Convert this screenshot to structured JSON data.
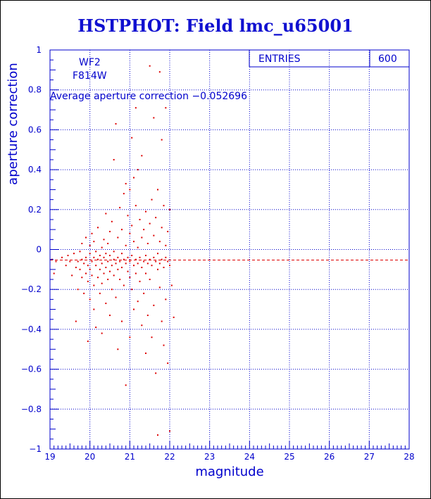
{
  "title": "HSTPHOT: Field lmc_u65001",
  "colors": {
    "axis": "#0000cc",
    "title": "#1010d0",
    "points": "#dd0000",
    "mean_line": "#dd0000"
  },
  "chart_data": {
    "type": "scatter",
    "xlabel": "magnitude",
    "ylabel": "aperture correction",
    "xlim": [
      19,
      28
    ],
    "ylim": [
      -1,
      1
    ],
    "x_ticks": [
      "19",
      "20",
      "21",
      "22",
      "23",
      "24",
      "25",
      "26",
      "27",
      "28"
    ],
    "y_ticks": [
      "1",
      "0.8",
      "0.6",
      "0.4",
      "0.2",
      "0",
      "−0.2",
      "−0.4",
      "−0.6",
      "−0.8",
      "−1"
    ],
    "grid": "dotted",
    "filter_label_1": "WF2",
    "filter_label_2": "F814W",
    "average_label": "Average aperture correction −0.052696",
    "average_value": -0.052696,
    "stats_box": {
      "label": "ENTRIES",
      "value": "600",
      "position": "top-right"
    },
    "points": [
      [
        19.05,
        -0.05
      ],
      [
        19.1,
        -0.12
      ],
      [
        19.15,
        -0.06
      ],
      [
        19.3,
        -0.04
      ],
      [
        19.4,
        -0.08
      ],
      [
        19.45,
        -0.03
      ],
      [
        19.5,
        -0.06
      ],
      [
        19.55,
        -0.13
      ],
      [
        19.6,
        -0.02
      ],
      [
        19.65,
        -0.09
      ],
      [
        19.65,
        -0.36
      ],
      [
        19.7,
        -0.06
      ],
      [
        19.7,
        -0.2
      ],
      [
        19.75,
        -0.01
      ],
      [
        19.75,
        -0.1
      ],
      [
        19.8,
        -0.05
      ],
      [
        19.8,
        -0.14
      ],
      [
        19.8,
        0.03
      ],
      [
        19.85,
        -0.07
      ],
      [
        19.85,
        -0.22
      ],
      [
        19.9,
        -0.04
      ],
      [
        19.9,
        -0.12
      ],
      [
        19.9,
        0.06
      ],
      [
        19.95,
        -0.08
      ],
      [
        19.95,
        -0.16
      ],
      [
        19.95,
        -0.46
      ],
      [
        20.0,
        -0.02
      ],
      [
        20.0,
        -0.1
      ],
      [
        20.0,
        -0.25
      ],
      [
        20.0,
        0.02
      ],
      [
        20.05,
        -0.06
      ],
      [
        20.05,
        -0.13
      ],
      [
        20.05,
        0.08
      ],
      [
        20.1,
        -0.04
      ],
      [
        20.1,
        -0.18
      ],
      [
        20.1,
        -0.3
      ],
      [
        20.1,
        0.04
      ],
      [
        20.15,
        -0.08
      ],
      [
        20.15,
        -0.01
      ],
      [
        20.15,
        -0.39
      ],
      [
        20.2,
        -0.05
      ],
      [
        20.2,
        -0.14
      ],
      [
        20.2,
        0.11
      ],
      [
        20.25,
        -0.1
      ],
      [
        20.25,
        -0.03
      ],
      [
        20.25,
        -0.22
      ],
      [
        20.3,
        -0.07
      ],
      [
        20.3,
        0.01
      ],
      [
        20.3,
        -0.17
      ],
      [
        20.3,
        -0.42
      ],
      [
        20.35,
        -0.04
      ],
      [
        20.35,
        -0.12
      ],
      [
        20.35,
        0.05
      ],
      [
        20.4,
        -0.09
      ],
      [
        20.4,
        -0.02
      ],
      [
        20.4,
        -0.27
      ],
      [
        20.4,
        0.18
      ],
      [
        20.45,
        -0.06
      ],
      [
        20.45,
        -0.15
      ],
      [
        20.45,
        0.03
      ],
      [
        20.5,
        -0.03
      ],
      [
        20.5,
        -0.11
      ],
      [
        20.5,
        -0.33
      ],
      [
        20.5,
        0.09
      ],
      [
        20.55,
        -0.08
      ],
      [
        20.55,
        0.14
      ],
      [
        20.55,
        -0.2
      ],
      [
        20.6,
        -0.05
      ],
      [
        20.6,
        -0.13
      ],
      [
        20.6,
        0.45
      ],
      [
        20.6,
        -0.01
      ],
      [
        20.65,
        -0.07
      ],
      [
        20.65,
        0.63
      ],
      [
        20.65,
        -0.24
      ],
      [
        20.7,
        -0.04
      ],
      [
        20.7,
        -0.1
      ],
      [
        20.7,
        0.06
      ],
      [
        20.7,
        -0.5
      ],
      [
        20.75,
        -0.06
      ],
      [
        20.75,
        0.21
      ],
      [
        20.75,
        -0.15
      ],
      [
        20.8,
        -0.02
      ],
      [
        20.8,
        -0.09
      ],
      [
        20.8,
        0.1
      ],
      [
        20.8,
        -0.36
      ],
      [
        20.85,
        -0.05
      ],
      [
        20.85,
        0.28
      ],
      [
        20.85,
        -0.18
      ],
      [
        20.9,
        -0.07
      ],
      [
        20.9,
        0.02
      ],
      [
        20.9,
        -0.68
      ],
      [
        20.9,
        0.33
      ],
      [
        20.95,
        -0.04
      ],
      [
        20.95,
        -0.11
      ],
      [
        20.95,
        0.17
      ],
      [
        21.0,
        -0.06
      ],
      [
        21.0,
        -0.14
      ],
      [
        21.0,
        0.08
      ],
      [
        21.0,
        -0.44
      ],
      [
        21.0,
        0.3
      ],
      [
        21.05,
        -0.03
      ],
      [
        21.05,
        -0.2
      ],
      [
        21.05,
        0.12
      ],
      [
        21.05,
        0.56
      ],
      [
        21.1,
        -0.08
      ],
      [
        21.1,
        0.04
      ],
      [
        21.1,
        -0.3
      ],
      [
        21.1,
        0.36
      ],
      [
        21.15,
        -0.05
      ],
      [
        21.15,
        -0.12
      ],
      [
        21.15,
        0.22
      ],
      [
        21.15,
        0.71
      ],
      [
        21.2,
        -0.07
      ],
      [
        21.2,
        0.01
      ],
      [
        21.2,
        -0.26
      ],
      [
        21.2,
        0.4
      ],
      [
        21.25,
        -0.04
      ],
      [
        21.25,
        -0.16
      ],
      [
        21.25,
        0.15
      ],
      [
        21.3,
        -0.09
      ],
      [
        21.3,
        0.06
      ],
      [
        21.3,
        -0.38
      ],
      [
        21.3,
        0.47
      ],
      [
        21.35,
        -0.06
      ],
      [
        21.35,
        0.1
      ],
      [
        21.35,
        -0.22
      ],
      [
        21.4,
        -0.03
      ],
      [
        21.4,
        -0.12
      ],
      [
        21.4,
        0.19
      ],
      [
        21.4,
        -0.52
      ],
      [
        21.45,
        -0.07
      ],
      [
        21.45,
        0.03
      ],
      [
        21.45,
        -0.33
      ],
      [
        21.5,
        -0.05
      ],
      [
        21.5,
        0.13
      ],
      [
        21.5,
        -0.15
      ],
      [
        21.5,
        0.92
      ],
      [
        21.55,
        -0.08
      ],
      [
        21.55,
        0.25
      ],
      [
        21.55,
        -0.44
      ],
      [
        21.6,
        -0.04
      ],
      [
        21.6,
        0.07
      ],
      [
        21.6,
        -0.28
      ],
      [
        21.6,
        0.66
      ],
      [
        21.65,
        -0.06
      ],
      [
        21.65,
        0.16
      ],
      [
        21.65,
        -0.62
      ],
      [
        21.7,
        -0.02
      ],
      [
        21.7,
        -0.1
      ],
      [
        21.7,
        0.3
      ],
      [
        21.7,
        -0.93
      ],
      [
        21.75,
        -0.07
      ],
      [
        21.75,
        0.04
      ],
      [
        21.75,
        -0.19
      ],
      [
        21.75,
        0.89
      ],
      [
        21.8,
        -0.05
      ],
      [
        21.8,
        0.11
      ],
      [
        21.8,
        -0.36
      ],
      [
        21.8,
        0.55
      ],
      [
        21.85,
        -0.09
      ],
      [
        21.85,
        0.22
      ],
      [
        21.85,
        -0.48
      ],
      [
        21.9,
        -0.04
      ],
      [
        21.9,
        0.02
      ],
      [
        21.9,
        -0.25
      ],
      [
        21.9,
        0.71
      ],
      [
        21.95,
        -0.06
      ],
      [
        21.95,
        0.09
      ],
      [
        21.95,
        -0.57
      ],
      [
        22.0,
        -0.08
      ],
      [
        22.0,
        0.2
      ],
      [
        22.0,
        -0.91
      ],
      [
        22.05,
        -0.18
      ],
      [
        22.1,
        -0.34
      ]
    ]
  }
}
